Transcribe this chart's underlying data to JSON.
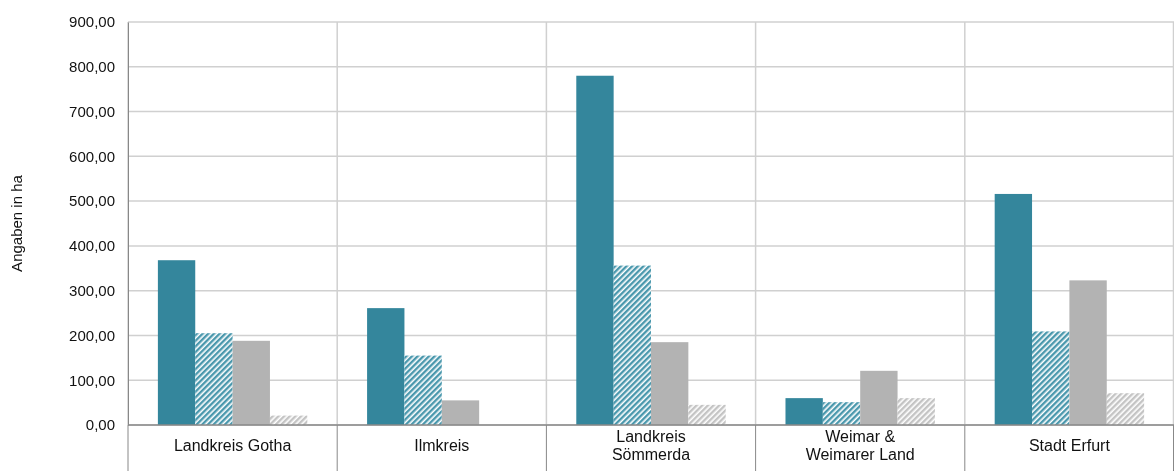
{
  "chart_data": {
    "type": "bar",
    "ylabel": "Angaben in ha",
    "categories": [
      "Landkreis Gotha",
      "Ilmkreis",
      "Landkreis Sömmerda",
      "Weimar & Weimarer Land",
      "Stadt Erfurt"
    ],
    "series": [
      {
        "color": "#34869c",
        "values": [
          368,
          261,
          780,
          60,
          516
        ]
      },
      {
        "color": "#4a98ad",
        "values": [
          205,
          155,
          356,
          51,
          209
        ]
      },
      {
        "color": "#b3b3b3",
        "values": [
          188,
          55,
          185,
          121,
          323
        ]
      },
      {
        "color": "#c4c4c4",
        "values": [
          21,
          null,
          45,
          60,
          71
        ]
      }
    ],
    "ylim": [
      0,
      900
    ],
    "yticks": [
      {
        "value": 0,
        "label": "0,00"
      },
      {
        "value": 100,
        "label": "100,00"
      },
      {
        "value": 200,
        "label": "200,00"
      },
      {
        "value": 300,
        "label": "300,00"
      },
      {
        "value": 400,
        "label": "400,00"
      },
      {
        "value": 500,
        "label": "500,00"
      },
      {
        "value": 600,
        "label": "600,00"
      },
      {
        "value": 700,
        "label": "700,00"
      },
      {
        "value": 800,
        "label": "800,00"
      },
      {
        "value": 900,
        "label": "900,00"
      }
    ],
    "grid": true
  }
}
